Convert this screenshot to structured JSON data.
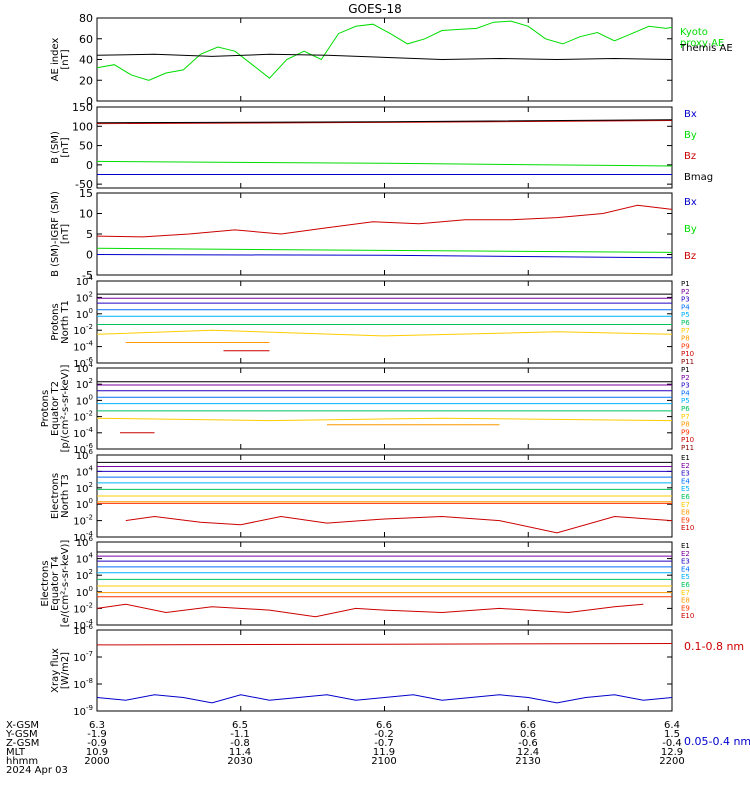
{
  "title": "GOES-18",
  "colors": {
    "axis": "#000000",
    "green": "#00dd00",
    "black": "#000000",
    "red": "#cc0000",
    "blue": "#0000cc",
    "maroon": "#880000"
  },
  "chart_data": [
    {
      "id": "ae",
      "type": "line",
      "ylabel": "AE index\n[nT]",
      "ylim": [
        0,
        80
      ],
      "yticks": [
        0,
        20,
        40,
        60,
        80
      ],
      "yticklabels": [
        "0",
        "20",
        "40",
        "60",
        "80"
      ],
      "yscale": "linear",
      "series": [
        {
          "name": "Kyoto\nproxy AE",
          "color": "#00dd00",
          "x": [
            0,
            0.03,
            0.06,
            0.09,
            0.12,
            0.15,
            0.18,
            0.21,
            0.24,
            0.27,
            0.3,
            0.33,
            0.36,
            0.39,
            0.42,
            0.45,
            0.48,
            0.51,
            0.54,
            0.57,
            0.6,
            0.63,
            0.66,
            0.69,
            0.72,
            0.75,
            0.78,
            0.81,
            0.84,
            0.87,
            0.9,
            0.93,
            0.96,
            0.99,
            1.0
          ],
          "y": [
            32,
            35,
            25,
            20,
            27,
            30,
            45,
            52,
            48,
            35,
            22,
            40,
            48,
            40,
            65,
            72,
            74,
            65,
            55,
            60,
            68,
            69,
            70,
            76,
            77,
            72,
            60,
            55,
            62,
            66,
            58,
            65,
            72,
            70,
            71
          ]
        },
        {
          "name": "Themis AE",
          "color": "#000000",
          "x": [
            0,
            0.1,
            0.2,
            0.3,
            0.4,
            0.5,
            0.6,
            0.7,
            0.8,
            0.9,
            1.0
          ],
          "y": [
            44,
            45,
            43,
            45,
            44,
            42,
            40,
            41,
            40,
            41,
            40
          ]
        }
      ]
    },
    {
      "id": "bsm",
      "type": "line",
      "ylabel": "B (SM)\n[nT]",
      "ylim": [
        -60,
        150
      ],
      "yticks": [
        -50,
        0,
        50,
        100,
        150
      ],
      "yticklabels": [
        "-50",
        "0",
        "50",
        "100",
        "150"
      ],
      "yscale": "linear",
      "series": [
        {
          "name": "Bx",
          "color": "#0000cc",
          "x": [
            0,
            1
          ],
          "y": [
            -25,
            -25
          ]
        },
        {
          "name": "By",
          "color": "#00dd00",
          "x": [
            0,
            0.5,
            1
          ],
          "y": [
            9,
            4,
            -3
          ]
        },
        {
          "name": "Bz",
          "color": "#cc0000",
          "x": [
            0,
            0.5,
            1
          ],
          "y": [
            107,
            110,
            115
          ]
        },
        {
          "name": "Bmag",
          "color": "#000000",
          "x": [
            0,
            0.5,
            1
          ],
          "y": [
            109,
            112,
            117
          ]
        }
      ]
    },
    {
      "id": "bigrf",
      "type": "line",
      "ylabel": "B (SM)-IGRF (SM)\n[nT]",
      "ylim": [
        -5,
        15
      ],
      "yticks": [
        -5,
        0,
        5,
        10,
        15
      ],
      "yticklabels": [
        "-5",
        "0",
        "5",
        "10",
        "15"
      ],
      "yscale": "linear",
      "series": [
        {
          "name": "Bx",
          "color": "#0000cc",
          "x": [
            0,
            0.5,
            1
          ],
          "y": [
            0,
            -0.2,
            -0.8
          ]
        },
        {
          "name": "By",
          "color": "#00dd00",
          "x": [
            0,
            0.5,
            1
          ],
          "y": [
            1.5,
            1,
            0.5
          ]
        },
        {
          "name": "Bz",
          "color": "#cc0000",
          "x": [
            0,
            0.08,
            0.16,
            0.24,
            0.32,
            0.4,
            0.48,
            0.56,
            0.64,
            0.72,
            0.8,
            0.88,
            0.94,
            1.0
          ],
          "y": [
            4.5,
            4.3,
            5.0,
            6.0,
            5.0,
            6.5,
            8.0,
            7.5,
            8.5,
            8.5,
            9.0,
            10.0,
            12.0,
            11.0
          ]
        }
      ]
    },
    {
      "id": "protons_t1",
      "type": "line",
      "ylabel": "Protons\nNorth T1",
      "ylim": [
        -6,
        4
      ],
      "yticks": [
        -6,
        -4,
        -2,
        0,
        2,
        4
      ],
      "yticklabels": [
        "10^-6",
        "10^-4",
        "10^-2",
        "10^0",
        "10^2",
        "10^4"
      ],
      "yscale": "log",
      "series": [
        {
          "name": "P1",
          "color": "#000000",
          "x": [
            0,
            1
          ],
          "y": [
            2.4,
            2.4
          ]
        },
        {
          "name": "P2",
          "color": "#7b00a0",
          "x": [
            0,
            1
          ],
          "y": [
            1.9,
            1.9
          ]
        },
        {
          "name": "P3",
          "color": "#2000c0",
          "x": [
            0,
            1
          ],
          "y": [
            1.3,
            1.3
          ]
        },
        {
          "name": "P4",
          "color": "#0070ff",
          "x": [
            0,
            1
          ],
          "y": [
            0.5,
            0.5
          ]
        },
        {
          "name": "P5",
          "color": "#00b0ff",
          "x": [
            0,
            1
          ],
          "y": [
            -0.3,
            -0.3
          ]
        },
        {
          "name": "P6",
          "color": "#00c060",
          "x": [
            0,
            1
          ],
          "y": [
            -1.3,
            -1.3
          ]
        },
        {
          "name": "P7",
          "color": "#ffcc00",
          "x": [
            0,
            0.2,
            0.5,
            0.8,
            1.0
          ],
          "y": [
            -2.5,
            -2.0,
            -2.7,
            -2.2,
            -2.5
          ]
        },
        {
          "name": "P8",
          "color": "#ff9900",
          "x": [
            0.05,
            0.3
          ],
          "y": [
            -3.5,
            -3.5
          ]
        },
        {
          "name": "P9",
          "color": "#ff3300",
          "x": [],
          "y": []
        },
        {
          "name": "P10",
          "color": "#cc0000",
          "x": [
            0.22,
            0.3
          ],
          "y": [
            -4.5,
            -4.5
          ]
        },
        {
          "name": "P11",
          "color": "#880000",
          "x": [],
          "y": []
        }
      ]
    },
    {
      "id": "protons_t2",
      "type": "line",
      "ylabel": "Protons\nEquator T2\n[p/(cm²-s-sr-keV)]",
      "ylim": [
        -6,
        4
      ],
      "yticks": [
        -6,
        -4,
        -2,
        0,
        2,
        4
      ],
      "yticklabels": [
        "10^-6",
        "10^-4",
        "10^-2",
        "10^0",
        "10^2",
        "10^4"
      ],
      "yscale": "log",
      "series": [
        {
          "name": "P1",
          "color": "#000000",
          "x": [
            0,
            1
          ],
          "y": [
            2.3,
            2.3
          ]
        },
        {
          "name": "P2",
          "color": "#7b00a0",
          "x": [
            0,
            1
          ],
          "y": [
            1.9,
            1.9
          ]
        },
        {
          "name": "P3",
          "color": "#2000c0",
          "x": [
            0,
            1
          ],
          "y": [
            1.2,
            1.2
          ]
        },
        {
          "name": "P4",
          "color": "#0070ff",
          "x": [
            0,
            1
          ],
          "y": [
            0.4,
            0.4
          ]
        },
        {
          "name": "P5",
          "color": "#00b0ff",
          "x": [
            0,
            1
          ],
          "y": [
            -0.4,
            -0.4
          ]
        },
        {
          "name": "P6",
          "color": "#00c060",
          "x": [
            0,
            1
          ],
          "y": [
            -1.3,
            -1.3
          ]
        },
        {
          "name": "P7",
          "color": "#ffcc00",
          "x": [
            0,
            0.3,
            0.6,
            1.0
          ],
          "y": [
            -2.2,
            -2.5,
            -2.2,
            -2.5
          ]
        },
        {
          "name": "P8",
          "color": "#ff9900",
          "x": [
            0.4,
            0.7
          ],
          "y": [
            -3.0,
            -3.0
          ]
        },
        {
          "name": "P9",
          "color": "#ff3300",
          "x": [],
          "y": []
        },
        {
          "name": "P10",
          "color": "#cc0000",
          "x": [
            0.04,
            0.1
          ],
          "y": [
            -4.0,
            -4.0
          ]
        },
        {
          "name": "P11",
          "color": "#880000",
          "x": [],
          "y": []
        }
      ]
    },
    {
      "id": "electrons_t3",
      "type": "line",
      "ylabel": "Electrons\nNorth T3",
      "ylim": [
        -4,
        6
      ],
      "yticks": [
        -4,
        -2,
        0,
        2,
        4,
        6
      ],
      "yticklabels": [
        "10^-4",
        "10^-2",
        "10^0",
        "10^2",
        "10^4",
        "10^6"
      ],
      "yscale": "log",
      "series": [
        {
          "name": "E1",
          "color": "#000000",
          "x": [
            0,
            1
          ],
          "y": [
            5.1,
            5.1
          ]
        },
        {
          "name": "E2",
          "color": "#7b00a0",
          "x": [
            0,
            1
          ],
          "y": [
            4.6,
            4.6
          ]
        },
        {
          "name": "E3",
          "color": "#2000c0",
          "x": [
            0,
            1
          ],
          "y": [
            4.0,
            4.0
          ]
        },
        {
          "name": "E4",
          "color": "#0070ff",
          "x": [
            0,
            1
          ],
          "y": [
            3.3,
            3.3
          ]
        },
        {
          "name": "E5",
          "color": "#00b0ff",
          "x": [
            0,
            1
          ],
          "y": [
            2.6,
            2.6
          ]
        },
        {
          "name": "E6",
          "color": "#00c060",
          "x": [
            0,
            1
          ],
          "y": [
            1.8,
            1.8
          ]
        },
        {
          "name": "E7",
          "color": "#ffcc00",
          "x": [
            0,
            1
          ],
          "y": [
            1.0,
            1.0
          ]
        },
        {
          "name": "E8",
          "color": "#ff9900",
          "x": [
            0,
            1
          ],
          "y": [
            0.3,
            0.3
          ]
        },
        {
          "name": "E9",
          "color": "#ff3300",
          "x": [
            0,
            1
          ],
          "y": [
            0.1,
            0.1
          ]
        },
        {
          "name": "E10",
          "color": "#cc0000",
          "x": [
            0.05,
            0.1,
            0.18,
            0.25,
            0.32,
            0.4,
            0.5,
            0.6,
            0.7,
            0.8,
            0.9,
            1.0
          ],
          "y": [
            -2.0,
            -1.5,
            -2.2,
            -2.5,
            -1.5,
            -2.3,
            -1.8,
            -1.5,
            -2.0,
            -3.5,
            -1.5,
            -2.0
          ]
        }
      ]
    },
    {
      "id": "electrons_t4",
      "type": "line",
      "ylabel": "Electrons\nEquator T4\n[e/(cm²-s-sr-keV)]",
      "ylim": [
        -4,
        6
      ],
      "yticks": [
        -4,
        -2,
        0,
        2,
        4,
        6
      ],
      "yticklabels": [
        "10^-4",
        "10^-2",
        "10^0",
        "10^2",
        "10^4",
        "10^6"
      ],
      "yscale": "log",
      "series": [
        {
          "name": "E1",
          "color": "#000000",
          "x": [
            0,
            1
          ],
          "y": [
            4.8,
            4.8
          ]
        },
        {
          "name": "E2",
          "color": "#7b00a0",
          "x": [
            0,
            1
          ],
          "y": [
            4.3,
            4.3
          ]
        },
        {
          "name": "E3",
          "color": "#2000c0",
          "x": [
            0,
            1
          ],
          "y": [
            3.7,
            3.7
          ]
        },
        {
          "name": "E4",
          "color": "#0070ff",
          "x": [
            0,
            1
          ],
          "y": [
            3.0,
            3.0
          ]
        },
        {
          "name": "E5",
          "color": "#00b0ff",
          "x": [
            0,
            1
          ],
          "y": [
            2.3,
            2.3
          ]
        },
        {
          "name": "E6",
          "color": "#00c060",
          "x": [
            0,
            1
          ],
          "y": [
            1.5,
            1.5
          ]
        },
        {
          "name": "E7",
          "color": "#ffcc00",
          "x": [
            0,
            1
          ],
          "y": [
            0.7,
            0.7
          ]
        },
        {
          "name": "E8",
          "color": "#ff9900",
          "x": [
            0,
            1
          ],
          "y": [
            -0.1,
            -0.1
          ]
        },
        {
          "name": "E9",
          "color": "#ff3300",
          "x": [
            0,
            1
          ],
          "y": [
            -0.6,
            -0.6
          ]
        },
        {
          "name": "E10",
          "color": "#cc0000",
          "x": [
            0.0,
            0.05,
            0.12,
            0.2,
            0.3,
            0.38,
            0.45,
            0.5,
            0.6,
            0.7,
            0.82,
            0.9,
            0.95
          ],
          "y": [
            -2.0,
            -1.5,
            -2.5,
            -1.8,
            -2.2,
            -3.0,
            -2.0,
            -2.2,
            -2.5,
            -2.0,
            -2.5,
            -1.8,
            -1.5
          ]
        }
      ]
    },
    {
      "id": "xray",
      "type": "line",
      "ylabel": "Xray flux\n[W/m2]",
      "ylim": [
        -9,
        -6
      ],
      "yticks": [
        -9,
        -8,
        -7,
        -6
      ],
      "yticklabels": [
        "10^-9",
        "10^-8",
        "10^-7",
        "10^-6"
      ],
      "yscale": "log",
      "series": [
        {
          "name": "0.1-0.8 nm",
          "color": "#cc0000",
          "x": [
            0,
            1
          ],
          "y": [
            -6.55,
            -6.5
          ]
        },
        {
          "name": "0.05-0.4 nm",
          "color": "#0000cc",
          "x": [
            0,
            0.05,
            0.1,
            0.15,
            0.2,
            0.25,
            0.3,
            0.35,
            0.4,
            0.45,
            0.5,
            0.55,
            0.6,
            0.65,
            0.7,
            0.75,
            0.8,
            0.85,
            0.9,
            0.95,
            1.0
          ],
          "y": [
            -8.5,
            -8.6,
            -8.4,
            -8.5,
            -8.7,
            -8.4,
            -8.6,
            -8.5,
            -8.4,
            -8.6,
            -8.5,
            -8.4,
            -8.6,
            -8.5,
            -8.4,
            -8.5,
            -8.7,
            -8.5,
            -8.4,
            -8.6,
            -8.5
          ]
        }
      ]
    }
  ],
  "xaxis": {
    "time_labels": [
      "2000",
      "2030",
      "2100",
      "2130",
      "2200"
    ],
    "row_names": [
      "X-GSM",
      "Y-GSM",
      "Z-GSM",
      "MLT",
      "hhmm",
      "2024 Apr 03"
    ],
    "rows": [
      [
        "6.3",
        "6.5",
        "6.6",
        "6.6",
        "6.4"
      ],
      [
        "-1.9",
        "-1.1",
        "-0.2",
        "0.6",
        "1.5"
      ],
      [
        "-0.9",
        "-0.8",
        "-0.7",
        "-0.6",
        "-0.4"
      ],
      [
        "10.9",
        "11.4",
        "11.9",
        "12.4",
        "12.9"
      ],
      [
        "2000",
        "2030",
        "2100",
        "2130",
        "2200"
      ]
    ]
  }
}
